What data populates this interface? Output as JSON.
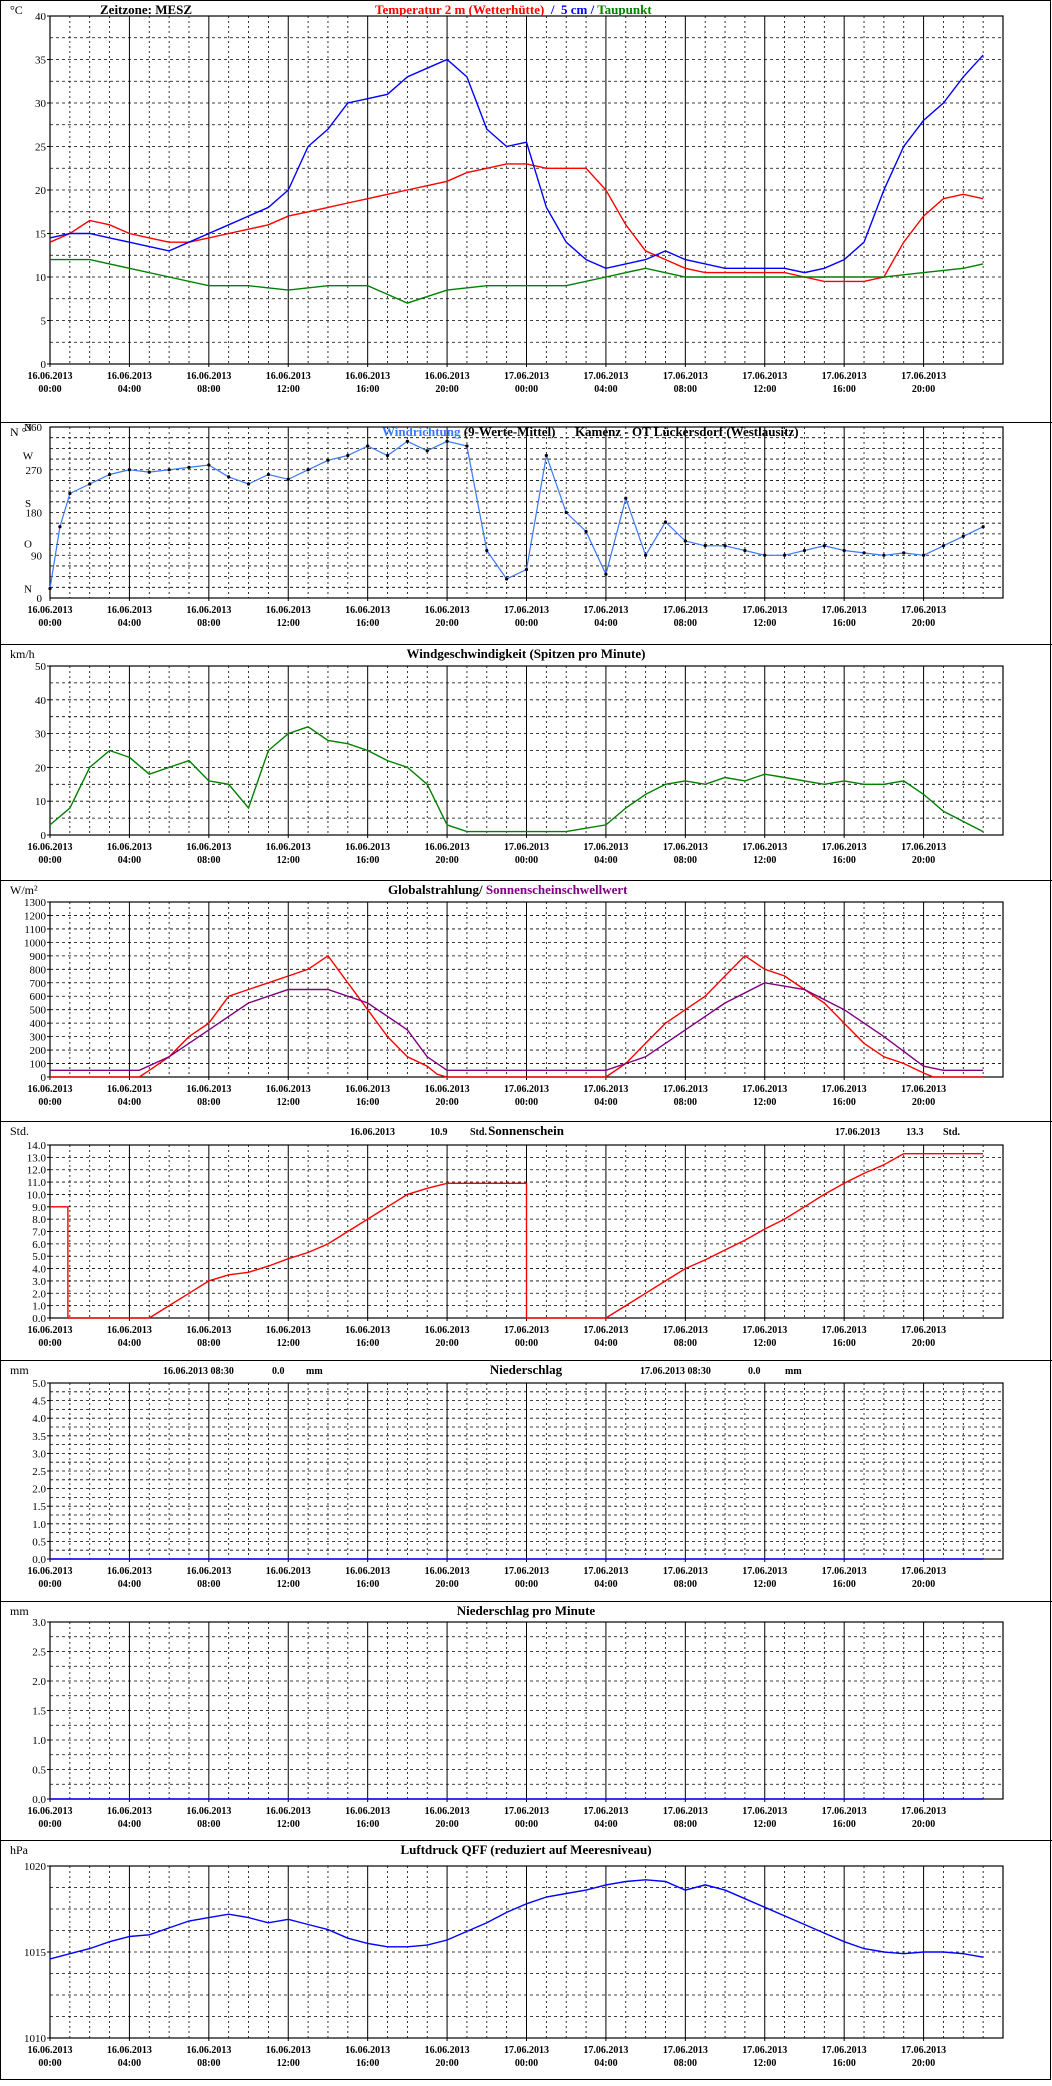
{
  "x_ticks": [
    {
      "d": "16.06.2013",
      "t": "00:00"
    },
    {
      "d": "16.06.2013",
      "t": "04:00"
    },
    {
      "d": "16.06.2013",
      "t": "08:00"
    },
    {
      "d": "16.06.2013",
      "t": "12:00"
    },
    {
      "d": "16.06.2013",
      "t": "16:00"
    },
    {
      "d": "16.06.2013",
      "t": "20:00"
    },
    {
      "d": "17.06.2013",
      "t": "00:00"
    },
    {
      "d": "17.06.2013",
      "t": "04:00"
    },
    {
      "d": "17.06.2013",
      "t": "08:00"
    },
    {
      "d": "17.06.2013",
      "t": "12:00"
    },
    {
      "d": "17.06.2013",
      "t": "16:00"
    },
    {
      "d": "17.06.2013",
      "t": "20:00"
    }
  ],
  "chart_data": [
    {
      "id": "temperature",
      "type": "line",
      "unit": "°C",
      "zone_label": "Zeitzone: MESZ",
      "title_parts": [
        {
          "text": "Temperatur 2 m (Wetterhütte)",
          "color": "#ff0000"
        },
        {
          "text": "  /  ",
          "color": "#0000ff"
        },
        {
          "text": "5 cm",
          "color": "#0000ff"
        },
        {
          "text": " / ",
          "color": "#0000ff"
        },
        {
          "text": "Taupunkt",
          "color": "#008000"
        }
      ],
      "ylim": [
        0,
        40
      ],
      "y_ticks": [
        "0",
        "5",
        "10",
        "15",
        "20",
        "25",
        "30",
        "35",
        "40"
      ],
      "series": [
        {
          "name": "Temperatur 2 m (Wetterhütte)",
          "color": "#ff0000",
          "x": [
            0,
            1,
            2,
            3,
            4,
            5,
            6,
            7,
            8,
            9,
            10,
            11,
            12,
            13,
            14,
            15,
            16,
            17,
            18,
            19,
            20,
            21,
            22,
            23,
            24,
            25,
            26,
            27,
            28,
            29,
            30,
            31,
            32,
            33,
            34,
            35,
            36,
            37,
            38,
            39,
            40,
            41,
            42,
            43,
            44,
            45,
            46,
            47
          ],
          "y": [
            14,
            15,
            16.5,
            16,
            15,
            14.5,
            14,
            14,
            14.5,
            15,
            15.5,
            16,
            17,
            17.5,
            18,
            18.5,
            19,
            19.5,
            20,
            20.5,
            21,
            22,
            22.5,
            23,
            23,
            22.5,
            22.5,
            22.5,
            20,
            16,
            13,
            12,
            11,
            10.5,
            10.5,
            10.5,
            10.5,
            10.5,
            10,
            9.5,
            9.5,
            9.5,
            10,
            14,
            17,
            19,
            19.5,
            19
          ]
        },
        {
          "name": "5 cm",
          "color": "#0000ff",
          "x": [
            0,
            1,
            2,
            3,
            4,
            5,
            6,
            7,
            8,
            9,
            10,
            11,
            12,
            13,
            14,
            15,
            16,
            17,
            18,
            19,
            20,
            21,
            22,
            23,
            24,
            25,
            26,
            27,
            28,
            29,
            30,
            31,
            32,
            33,
            34,
            35,
            36,
            37,
            38,
            39,
            40,
            41,
            42,
            43,
            44,
            45,
            46,
            47
          ],
          "y": [
            14.5,
            15,
            15,
            14.5,
            14,
            13.5,
            13,
            14,
            15,
            16,
            17,
            18,
            20,
            25,
            27,
            30,
            30.5,
            31,
            33,
            34,
            35,
            33,
            27,
            25,
            25.5,
            18,
            14,
            12,
            11,
            11.5,
            12,
            13,
            12,
            11.5,
            11,
            11,
            11,
            11,
            10.5,
            11,
            12,
            14,
            20,
            25,
            28,
            30,
            33,
            35.5
          ]
        },
        {
          "name": "Taupunkt",
          "color": "#008000",
          "x": [
            0,
            2,
            4,
            6,
            8,
            10,
            12,
            14,
            16,
            18,
            20,
            22,
            24,
            26,
            28,
            30,
            32,
            34,
            36,
            38,
            40,
            42,
            44,
            46,
            47
          ],
          "y": [
            12,
            12,
            11,
            10,
            9,
            9,
            8.5,
            9,
            9,
            7,
            8.5,
            9,
            9,
            9,
            10,
            11,
            10,
            10,
            10,
            10,
            10,
            10,
            10.5,
            11,
            11.5
          ]
        }
      ]
    },
    {
      "id": "wind_direction",
      "type": "scatter",
      "title_parts": [
        {
          "text": "Windrichtung",
          "color": "#3a78ff"
        },
        {
          "text": " (9-Werte-Mittel)",
          "color": "#000000"
        },
        {
          "text": "      Kamenz - OT Lückersdorf (Westlausitz)",
          "color": "#000000"
        }
      ],
      "unit": "N  °",
      "ylim": [
        0,
        360
      ],
      "y_labels": [
        {
          "v": 360,
          "label": "360"
        },
        {
          "v": 270,
          "label": "270"
        },
        {
          "v": 180,
          "label": "180"
        },
        {
          "v": 90,
          "label": "90"
        },
        {
          "v": 0,
          "label": "0"
        }
      ],
      "dir_labels": [
        {
          "v": 360,
          "label": "N"
        },
        {
          "v": 300,
          "label": "W"
        },
        {
          "v": 200,
          "label": "S"
        },
        {
          "v": 115,
          "label": "O"
        },
        {
          "v": 20,
          "label": "N"
        }
      ],
      "series": [
        {
          "name": "Windrichtung",
          "color": "#3a78ff",
          "x": [
            0,
            0.5,
            1,
            2,
            3,
            4,
            5,
            6,
            7,
            8,
            9,
            10,
            11,
            12,
            13,
            14,
            15,
            16,
            17,
            18,
            19,
            20,
            21,
            22,
            23,
            24,
            25,
            26,
            27,
            28,
            29,
            30,
            31,
            32,
            33,
            34,
            35,
            36,
            37,
            38,
            39,
            40,
            41,
            42,
            43,
            44,
            45,
            46,
            47
          ],
          "y": [
            20,
            150,
            220,
            240,
            260,
            270,
            265,
            270,
            275,
            280,
            255,
            240,
            260,
            250,
            270,
            290,
            300,
            320,
            300,
            330,
            310,
            330,
            320,
            100,
            40,
            60,
            300,
            180,
            140,
            50,
            210,
            90,
            160,
            120,
            110,
            110,
            100,
            90,
            90,
            100,
            110,
            100,
            95,
            90,
            95,
            90,
            110,
            130,
            150
          ]
        }
      ]
    },
    {
      "id": "wind_speed",
      "type": "line",
      "unit": "km/h",
      "title": "Windgeschwindigkeit (Spitzen pro Minute)",
      "ylim": [
        0,
        50
      ],
      "y_ticks": [
        "0",
        "10",
        "20",
        "30",
        "40",
        "50"
      ],
      "series": [
        {
          "name": "Windgeschwindigkeit",
          "color": "#008000",
          "x": [
            0,
            1,
            2,
            3,
            4,
            5,
            6,
            7,
            8,
            9,
            10,
            11,
            12,
            13,
            14,
            15,
            16,
            17,
            18,
            19,
            20,
            21,
            22,
            23,
            24,
            25,
            26,
            27,
            28,
            29,
            30,
            31,
            32,
            33,
            34,
            35,
            36,
            37,
            38,
            39,
            40,
            41,
            42,
            43,
            44,
            45,
            46,
            47
          ],
          "y": [
            3,
            8,
            20,
            25,
            23,
            18,
            20,
            22,
            16,
            15,
            8,
            25,
            30,
            32,
            28,
            27,
            25,
            22,
            20,
            15,
            3,
            1,
            1,
            1,
            1,
            1,
            1,
            2,
            3,
            8,
            12,
            15,
            16,
            15,
            17,
            16,
            18,
            17,
            16,
            15,
            16,
            15,
            15,
            16,
            12,
            7,
            4,
            1
          ]
        }
      ]
    },
    {
      "id": "radiation",
      "type": "line",
      "unit": "W/m²",
      "title_parts": [
        {
          "text": "Globalstrahlung/ ",
          "color": "#000000"
        },
        {
          "text": "Sonnenscheinschwellwert",
          "color": "#800080"
        }
      ],
      "ylim": [
        0,
        1300
      ],
      "y_ticks": [
        "0",
        "100",
        "200",
        "300",
        "400",
        "500",
        "600",
        "700",
        "800",
        "900",
        "1000",
        "1100",
        "1200",
        "1300"
      ],
      "series": [
        {
          "name": "Globalstrahlung",
          "color": "#ff0000",
          "x": [
            0,
            4.5,
            5,
            6,
            7,
            8,
            9,
            10,
            11,
            12,
            13,
            14,
            15,
            16,
            17,
            18,
            19,
            19.5,
            20,
            28,
            29,
            30,
            31,
            32,
            33,
            34,
            35,
            36,
            37,
            38,
            39,
            40,
            41,
            42,
            43,
            44,
            44.5,
            47
          ],
          "y": [
            0,
            0,
            50,
            150,
            300,
            400,
            600,
            650,
            700,
            750,
            800,
            900,
            700,
            500,
            300,
            150,
            80,
            20,
            0,
            0,
            100,
            250,
            400,
            500,
            600,
            750,
            900,
            800,
            750,
            650,
            550,
            400,
            250,
            150,
            100,
            30,
            0,
            0
          ]
        },
        {
          "name": "Sonnenscheinschwellwert",
          "color": "#800080",
          "x": [
            0,
            4.5,
            6,
            8,
            10,
            12,
            14,
            16,
            18,
            19,
            20,
            28,
            30,
            32,
            34,
            36,
            38,
            40,
            42,
            44,
            45,
            47
          ],
          "y": [
            50,
            50,
            150,
            350,
            550,
            650,
            650,
            550,
            350,
            150,
            50,
            50,
            150,
            350,
            550,
            700,
            650,
            500,
            300,
            80,
            50,
            50
          ]
        }
      ]
    },
    {
      "id": "sunshine",
      "type": "line",
      "unit": "Std.",
      "title": "Sonnenschein",
      "day_totals": [
        {
          "date": "16.06.2013",
          "value": "10.9",
          "unit": "Std."
        },
        {
          "date": "17.06.2013",
          "value": "13.3",
          "unit": "Std."
        }
      ],
      "ylim": [
        0,
        14
      ],
      "y_ticks": [
        "0.0",
        "1.0",
        "2.0",
        "3.0",
        "4.0",
        "5.0",
        "6.0",
        "7.0",
        "8.0",
        "9.0",
        "10.0",
        "11.0",
        "12.0",
        "13.0",
        "14.0"
      ],
      "series": [
        {
          "name": "Sonnenschein",
          "color": "#ff0000",
          "x": [
            0,
            0.9,
            0.9,
            5,
            6,
            7,
            8,
            9,
            10,
            11,
            12,
            13,
            14,
            15,
            16,
            17,
            18,
            19,
            20,
            24,
            24,
            28,
            29,
            30,
            31,
            32,
            33,
            34,
            35,
            36,
            37,
            38,
            39,
            40,
            41,
            42,
            43,
            44,
            47
          ],
          "y": [
            9,
            9,
            0,
            0,
            1,
            2,
            3,
            3.5,
            3.7,
            4.2,
            4.8,
            5.3,
            6,
            7,
            8,
            9,
            10,
            10.5,
            10.9,
            10.9,
            0,
            0,
            1,
            2,
            3,
            4,
            4.7,
            5.5,
            6.3,
            7.2,
            8,
            9,
            10,
            10.9,
            11.7,
            12.4,
            13.3,
            13.3,
            13.3
          ]
        }
      ]
    },
    {
      "id": "precipitation",
      "type": "line",
      "unit": "mm",
      "title": "Niederschlag",
      "day_totals": [
        {
          "date": "16.06.2013 08:30",
          "value": "0.0",
          "unit": "mm"
        },
        {
          "date": "17.06.2013 08:30",
          "value": "0.0",
          "unit": "mm"
        }
      ],
      "ylim": [
        0,
        5
      ],
      "y_ticks": [
        "0.0",
        "0.5",
        "1.0",
        "1.5",
        "2.0",
        "2.5",
        "3.0",
        "3.5",
        "4.0",
        "4.5",
        "5.0"
      ],
      "series": [
        {
          "name": "Niederschlag",
          "color": "#0000ff",
          "x": [
            0,
            47
          ],
          "y": [
            0,
            0
          ]
        }
      ]
    },
    {
      "id": "precip_minute",
      "type": "line",
      "unit": "mm",
      "title": "Niederschlag pro Minute",
      "ylim": [
        0,
        3
      ],
      "y_ticks": [
        "0.0",
        "0.5",
        "1.0",
        "1.5",
        "2.0",
        "2.5",
        "3.0"
      ],
      "series": [
        {
          "name": "Niederschlag pro Minute",
          "color": "#0000ff",
          "x": [
            0,
            47
          ],
          "y": [
            0,
            0
          ]
        }
      ]
    },
    {
      "id": "pressure",
      "type": "line",
      "unit": "hPa",
      "title": "Luftdruck QFF (reduziert auf Meeresniveau)",
      "ylim": [
        1010,
        1020
      ],
      "y_ticks": [
        "1010",
        "1015",
        "1020"
      ],
      "series": [
        {
          "name": "Luftdruck QFF",
          "color": "#0000ff",
          "x": [
            0,
            1,
            2,
            3,
            4,
            5,
            6,
            7,
            8,
            9,
            10,
            11,
            12,
            13,
            14,
            15,
            16,
            17,
            18,
            19,
            20,
            21,
            22,
            23,
            24,
            25,
            26,
            27,
            28,
            29,
            30,
            31,
            32,
            33,
            34,
            35,
            36,
            37,
            38,
            39,
            40,
            41,
            42,
            43,
            44,
            45,
            46,
            47
          ],
          "y": [
            1014.6,
            1014.9,
            1015.2,
            1015.6,
            1015.9,
            1016,
            1016.4,
            1016.8,
            1017,
            1017.2,
            1017,
            1016.7,
            1016.9,
            1016.6,
            1016.3,
            1015.8,
            1015.5,
            1015.3,
            1015.3,
            1015.4,
            1015.7,
            1016.2,
            1016.7,
            1017.3,
            1017.8,
            1018.2,
            1018.4,
            1018.6,
            1018.9,
            1019.1,
            1019.2,
            1019.1,
            1018.6,
            1018.9,
            1018.6,
            1018.1,
            1017.6,
            1017.1,
            1016.6,
            1016.1,
            1015.6,
            1015.2,
            1015,
            1014.9,
            1015,
            1015,
            1014.9,
            1014.7
          ]
        }
      ]
    }
  ]
}
